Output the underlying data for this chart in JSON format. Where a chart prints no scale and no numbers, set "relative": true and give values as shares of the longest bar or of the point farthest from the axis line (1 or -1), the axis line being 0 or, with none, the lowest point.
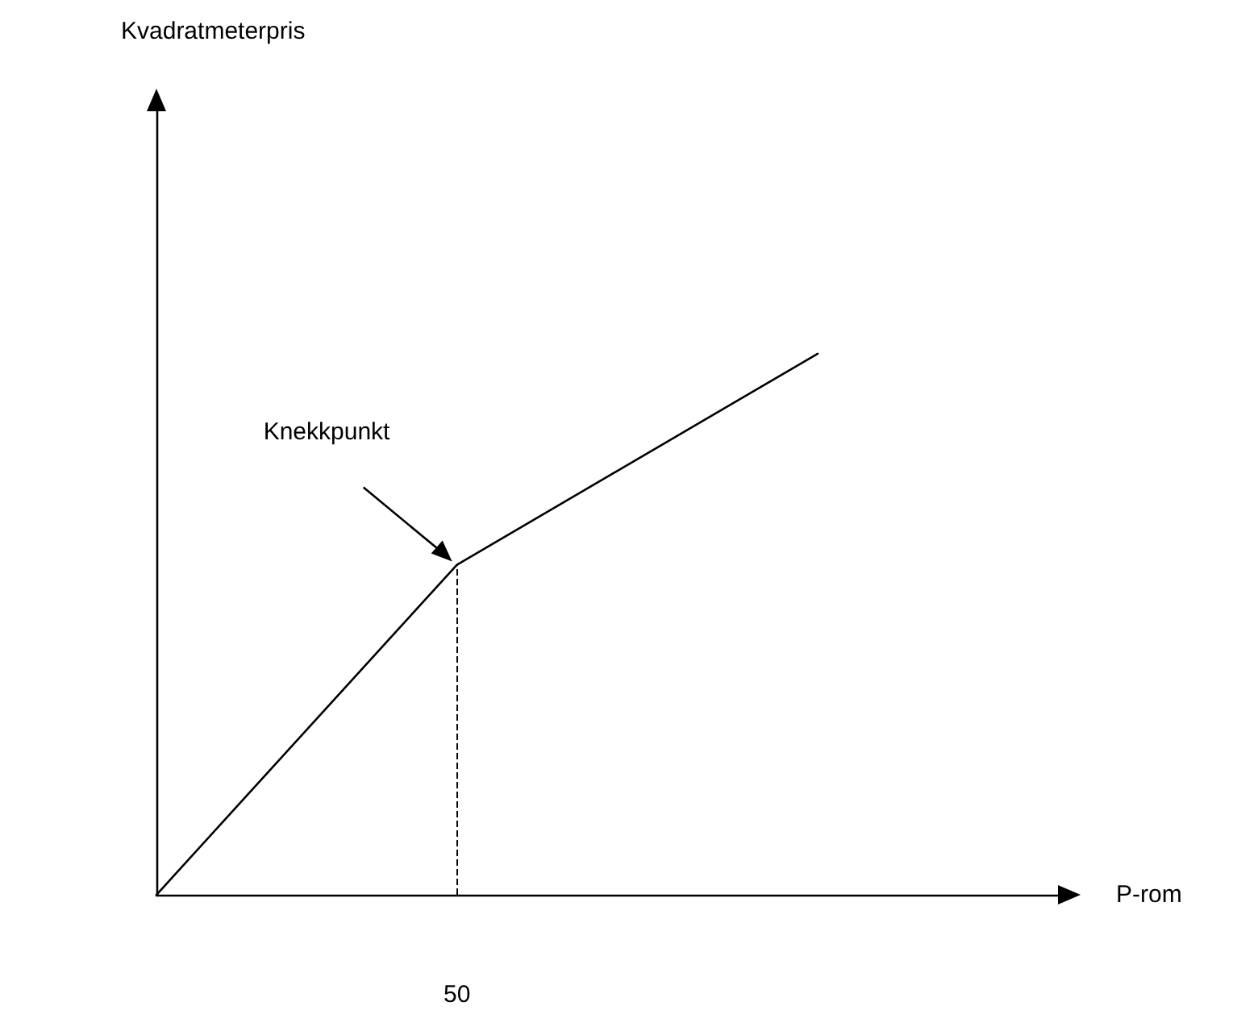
{
  "chart_data": {
    "type": "line",
    "xlabel": "P-rom",
    "relative": true,
    "categories": [
      null,
      null,
      null,
      null,
      null,
      null,
      null,
      null,
      null,
      null,
      null,
      null,
      null,
      null,
      null,
      null
    ],
    "values": [
      0,
      null,
      null,
      null,
      null,
      0.61,
      null,
      null,
      null,
      null,
      null,
      1,
      null,
      null,
      null,
      null
    ],
    "color": "#000000",
    "grid": false,
    "marker": "none",
    "line_style": "solid",
    "ref_lines": [
      {
        "axis": "x",
        "label": "50",
        "line_style": "dashed",
        "color": "#000000"
      }
    ],
    "annotations": [
      "Knekkpunkt",
      "Kvadratmeterpris"
    ]
  }
}
